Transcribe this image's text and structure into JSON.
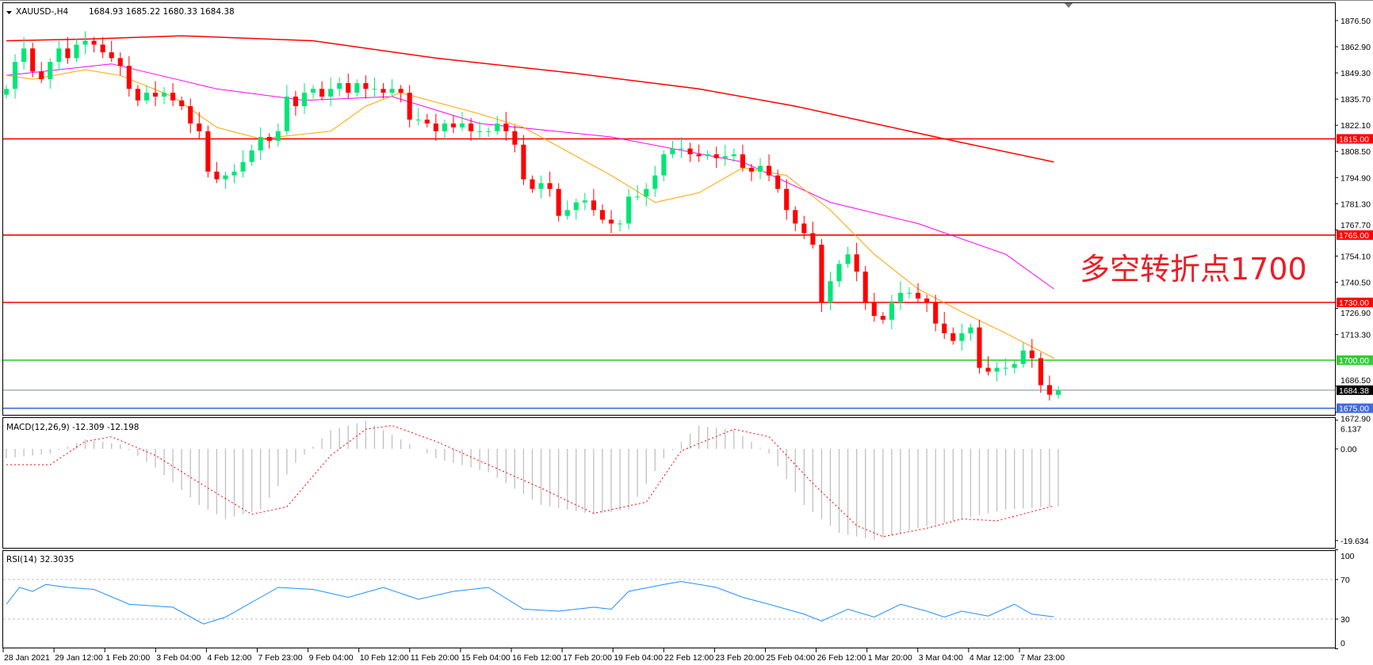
{
  "header": {
    "symbol": "XAUUSD-,H4",
    "ohlc": "1684.93 1685.22 1680.33 1684.38"
  },
  "annotation": {
    "text": "多空转折点1700",
    "color": "#ee1c25"
  },
  "price_axis": {
    "ticks": [
      "1876.50",
      "1862.90",
      "1849.30",
      "1835.70",
      "1822.10",
      "1808.50",
      "1794.90",
      "1781.30",
      "1767.70",
      "1754.10",
      "1740.50",
      "1726.90",
      "1713.30",
      "1686.50",
      "1672.90"
    ]
  },
  "levels": [
    {
      "price": 1815.0,
      "label": "1815.00",
      "color": "#ff0000"
    },
    {
      "price": 1765.0,
      "label": "1765.00",
      "color": "#ff0000"
    },
    {
      "price": 1730.0,
      "label": "1730.00",
      "color": "#ff0000"
    },
    {
      "price": 1700.0,
      "label": "1700.00",
      "color": "#32cd32"
    },
    {
      "price": 1684.38,
      "label": "1684.38",
      "color": "#778899",
      "tag_color": "#000000"
    },
    {
      "price": 1675.0,
      "label": "1675.00",
      "color": "#4169e1"
    }
  ],
  "colors": {
    "bull": "#00e676",
    "bear": "#ff0000",
    "ma_slow": "#ff0000",
    "ma_mid": "#ff00ff",
    "ma_fast": "#ffa500",
    "macd_hist": "#c0c0c0",
    "macd_signal": "#ff0000",
    "rsi": "#1e90ff"
  },
  "candles_close": [
    1841,
    1855,
    1862,
    1850,
    1846,
    1855,
    1862,
    1857,
    1864,
    1866,
    1864,
    1860,
    1857,
    1853,
    1841,
    1835,
    1839,
    1837,
    1839,
    1835,
    1832,
    1823,
    1819,
    1798,
    1794,
    1796,
    1798,
    1803,
    1809,
    1816,
    1814,
    1819,
    1837,
    1832,
    1839,
    1841,
    1837,
    1841,
    1844,
    1839,
    1844,
    1841,
    1841,
    1839,
    1841,
    1839,
    1825,
    1825,
    1823,
    1819,
    1823,
    1821,
    1823,
    1819,
    1819,
    1819,
    1823,
    1819,
    1812,
    1794,
    1789,
    1792,
    1789,
    1775,
    1778,
    1782,
    1783,
    1778,
    1773,
    1771,
    1771,
    1785,
    1785,
    1789,
    1796,
    1807,
    1810,
    1810,
    1807,
    1806,
    1807,
    1805,
    1806,
    1807,
    1800,
    1798,
    1801,
    1796,
    1789,
    1778,
    1771,
    1766,
    1760,
    1730,
    1741,
    1750,
    1755,
    1746,
    1730,
    1723,
    1721,
    1730,
    1735,
    1735,
    1732,
    1730,
    1719,
    1714,
    1710,
    1714,
    1717,
    1696,
    1694,
    1696,
    1696,
    1698,
    1705,
    1701,
    1687,
    1682,
    1684.38
  ],
  "moving_averages": [
    {
      "key": "ma_slow",
      "points": [
        [
          0,
          1866
        ],
        [
          10,
          1867
        ],
        [
          20,
          1868.6
        ],
        [
          35,
          1866
        ],
        [
          49,
          1857
        ],
        [
          65,
          1849
        ],
        [
          79,
          1841
        ],
        [
          90,
          1832
        ],
        [
          99,
          1823
        ],
        [
          107,
          1815
        ],
        [
          119.5,
          1803
        ]
      ]
    },
    {
      "key": "ma_mid",
      "points": [
        [
          0,
          1848
        ],
        [
          12,
          1854
        ],
        [
          24,
          1841
        ],
        [
          34,
          1835
        ],
        [
          44,
          1837
        ],
        [
          54,
          1823
        ],
        [
          69,
          1816
        ],
        [
          84,
          1803
        ],
        [
          94,
          1782
        ],
        [
          104,
          1771
        ],
        [
          114,
          1755
        ],
        [
          119.5,
          1737
        ]
      ]
    },
    {
      "key": "ma_fast",
      "points": [
        [
          0,
          1848
        ],
        [
          3,
          1846
        ],
        [
          9,
          1851
        ],
        [
          13,
          1848
        ],
        [
          19,
          1837
        ],
        [
          24,
          1821
        ],
        [
          29,
          1815
        ],
        [
          37,
          1819
        ],
        [
          41,
          1832
        ],
        [
          45,
          1839
        ],
        [
          54,
          1828
        ],
        [
          59,
          1821
        ],
        [
          69,
          1796
        ],
        [
          74,
          1782
        ],
        [
          79,
          1787
        ],
        [
          84,
          1800
        ],
        [
          89,
          1796
        ],
        [
          94,
          1778
        ],
        [
          99,
          1755
        ],
        [
          104,
          1737
        ],
        [
          109,
          1725
        ],
        [
          114,
          1714
        ],
        [
          119.5,
          1701
        ]
      ]
    }
  ],
  "macd": {
    "label": "MACD(12,26,9) -12.309 -12.198",
    "ticks": [
      "6.137",
      "0.00",
      "-19.634"
    ],
    "histogram_points": [
      [
        0,
        -2
      ],
      [
        5,
        -1
      ],
      [
        9,
        2
      ],
      [
        13,
        1
      ],
      [
        17,
        -4
      ],
      [
        22,
        -12
      ],
      [
        25,
        -15
      ],
      [
        29,
        -13
      ],
      [
        33,
        -3
      ],
      [
        37,
        4
      ],
      [
        41,
        6
      ],
      [
        45,
        2
      ],
      [
        49,
        -2
      ],
      [
        55,
        -5
      ],
      [
        61,
        -12
      ],
      [
        67,
        -14
      ],
      [
        71,
        -13
      ],
      [
        75,
        -2
      ],
      [
        79,
        5
      ],
      [
        83,
        4
      ],
      [
        87,
        -1
      ],
      [
        91,
        -12
      ],
      [
        95,
        -18
      ],
      [
        99,
        -19.5
      ],
      [
        104,
        -17
      ],
      [
        109,
        -15
      ],
      [
        114,
        -13
      ],
      [
        119.5,
        -12.3
      ]
    ],
    "signal_points": [
      [
        0,
        -3.4
      ],
      [
        5,
        -3.4
      ],
      [
        9,
        1.6
      ],
      [
        12,
        2.6
      ],
      [
        17,
        -1.4
      ],
      [
        23,
        -8.4
      ],
      [
        28,
        -14
      ],
      [
        32,
        -12.4
      ],
      [
        37,
        -1.4
      ],
      [
        41,
        4.2
      ],
      [
        44,
        5
      ],
      [
        49,
        1.6
      ],
      [
        55,
        -3.4
      ],
      [
        61,
        -8.4
      ],
      [
        67,
        -13.8
      ],
      [
        73,
        -11.4
      ],
      [
        77,
        -0.4
      ],
      [
        83,
        4.2
      ],
      [
        87,
        2.6
      ],
      [
        92,
        -7.4
      ],
      [
        97,
        -16.4
      ],
      [
        100,
        -18.8
      ],
      [
        105,
        -17
      ],
      [
        109,
        -15
      ],
      [
        113,
        -15.4
      ],
      [
        119.5,
        -12.2
      ]
    ]
  },
  "rsi": {
    "label": "RSI(14) 32.3035",
    "ticks": [
      "100",
      "70",
      "30",
      "0"
    ],
    "points": [
      [
        0,
        45
      ],
      [
        1.5,
        62
      ],
      [
        3,
        58
      ],
      [
        4.5,
        65
      ],
      [
        7,
        62
      ],
      [
        10,
        60
      ],
      [
        14,
        45
      ],
      [
        19,
        42
      ],
      [
        22.5,
        25
      ],
      [
        25,
        32
      ],
      [
        29,
        52
      ],
      [
        31,
        62
      ],
      [
        35,
        60
      ],
      [
        39,
        52
      ],
      [
        43,
        62
      ],
      [
        47,
        50
      ],
      [
        51,
        58
      ],
      [
        55,
        62
      ],
      [
        59,
        40
      ],
      [
        63,
        38
      ],
      [
        67,
        42
      ],
      [
        69,
        40
      ],
      [
        71,
        58
      ],
      [
        75,
        65
      ],
      [
        77,
        68
      ],
      [
        81,
        62
      ],
      [
        84,
        52
      ],
      [
        87,
        45
      ],
      [
        91,
        35
      ],
      [
        93,
        28
      ],
      [
        96,
        40
      ],
      [
        99,
        32
      ],
      [
        102,
        45
      ],
      [
        105,
        38
      ],
      [
        107,
        32
      ],
      [
        109,
        38
      ],
      [
        112,
        33
      ],
      [
        115,
        45
      ],
      [
        117,
        35
      ],
      [
        119.5,
        32.3
      ]
    ]
  },
  "time_axis": {
    "labels": [
      "28 Jan 2021",
      "29 Jan 12:00",
      "1 Feb 20:00",
      "3 Feb 04:00",
      "4 Feb 12:00",
      "7 Feb 23:00",
      "9 Feb 04:00",
      "10 Feb 12:00",
      "11 Feb 20:00",
      "15 Feb 04:00",
      "16 Feb 12:00",
      "17 Feb 20:00",
      "19 Feb 04:00",
      "22 Feb 12:00",
      "23 Feb 20:00",
      "25 Feb 04:00",
      "26 Feb 12:00",
      "1 Mar 20:00",
      "3 Mar 04:00",
      "4 Mar 12:00",
      "7 Mar 23:00"
    ]
  }
}
